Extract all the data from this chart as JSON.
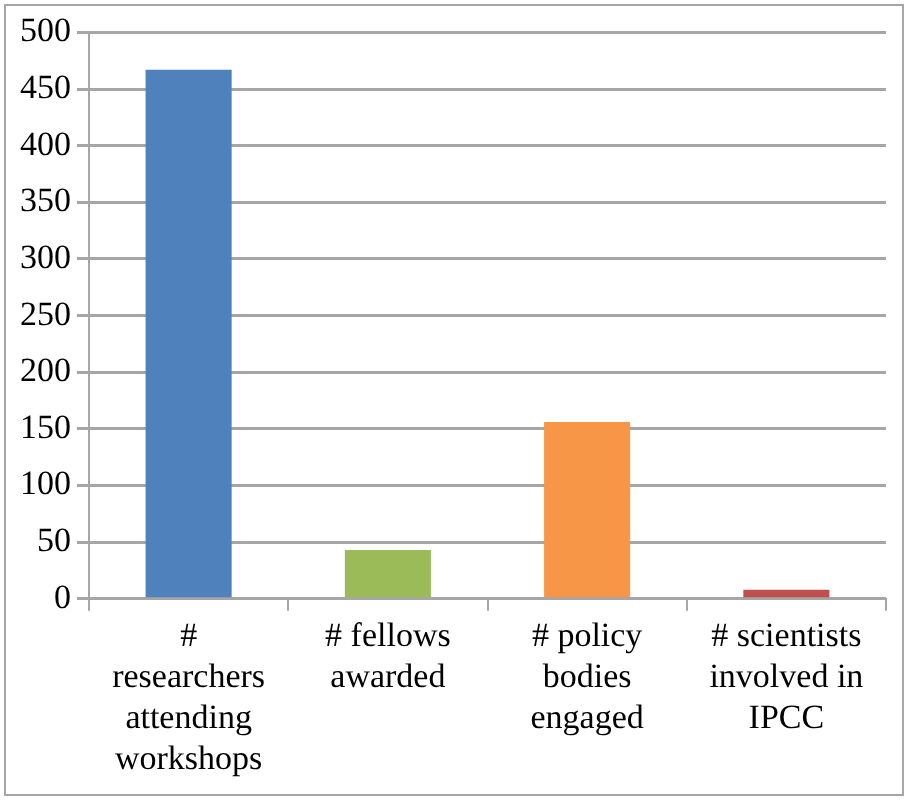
{
  "chart_data": {
    "type": "bar",
    "categories": [
      "# researchers attending workshops",
      "# fellows awarded",
      "# policy bodies engaged",
      "# scientists involved in IPCC"
    ],
    "values": [
      467,
      43,
      156,
      8
    ],
    "colors": [
      "#4f81bd",
      "#9bbb59",
      "#f79646",
      "#c0504d"
    ],
    "ylim": [
      0,
      500
    ],
    "yticks": [
      0,
      50,
      100,
      150,
      200,
      250,
      300,
      350,
      400,
      450,
      500
    ],
    "grid": "y",
    "legend": false
  }
}
